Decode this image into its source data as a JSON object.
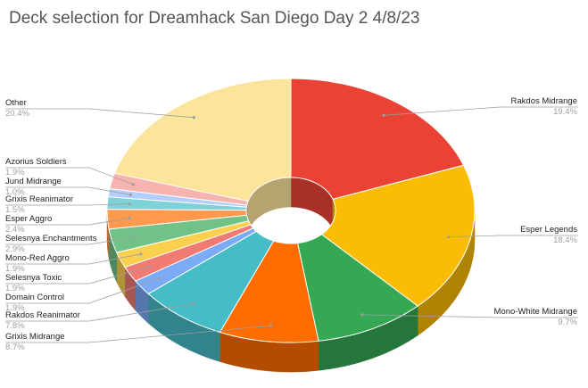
{
  "chart_data": {
    "type": "pie",
    "title": "Deck selection for Dreamhack San Diego Day 2 4/8/23",
    "donut": true,
    "style": "3d",
    "legend": "none",
    "slices": [
      {
        "label": "Rakdos Midrange",
        "value": 19.4,
        "pct": "19.4%",
        "color": "#ea4335"
      },
      {
        "label": "Esper Legends",
        "value": 18.4,
        "pct": "18.4%",
        "color": "#fbbc04"
      },
      {
        "label": "Mono-White Midrange",
        "value": 9.7,
        "pct": "9.7%",
        "color": "#34a853"
      },
      {
        "label": "Grixis Midrange",
        "value": 8.7,
        "pct": "8.7%",
        "color": "#ff6d01"
      },
      {
        "label": "Rakdos Reanimator",
        "value": 7.8,
        "pct": "7.8%",
        "color": "#46bdc6"
      },
      {
        "label": "Domain Control",
        "value": 1.9,
        "pct": "1.9%",
        "color": "#7baaf7"
      },
      {
        "label": "Selesnya Toxic",
        "value": 1.9,
        "pct": "1.9%",
        "color": "#f07b72"
      },
      {
        "label": "Mono-Red Aggro",
        "value": 1.9,
        "pct": "1.9%",
        "color": "#fcd04f"
      },
      {
        "label": "Selesnya Enchantments",
        "value": 2.9,
        "pct": "2.9%",
        "color": "#71c287"
      },
      {
        "label": "Esper Aggro",
        "value": 2.4,
        "pct": "2.4%",
        "color": "#ff994d"
      },
      {
        "label": "Grixis Reanimator",
        "value": 1.5,
        "pct": "1.5%",
        "color": "#7ed1d7"
      },
      {
        "label": "Jund Midrange",
        "value": 1.0,
        "pct": "1.0%",
        "color": "#b3cefb"
      },
      {
        "label": "Azorius Soldiers",
        "value": 1.9,
        "pct": "1.9%",
        "color": "#f7b4ae"
      },
      {
        "label": "Other",
        "value": 20.4,
        "pct": "20.4%",
        "color": "#fde49b"
      }
    ]
  }
}
